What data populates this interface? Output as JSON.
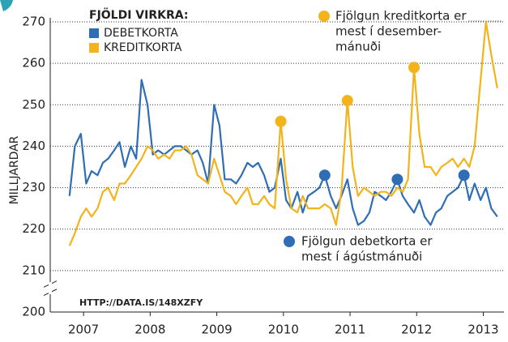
{
  "chart_data": {
    "type": "line",
    "y_axis_label": "MILLJARDAR",
    "legend_title": "FJÖLDI VIRKRA:",
    "source": "HTTP://DATA.IS/148XZFY",
    "annotations": [
      {
        "lines": [
          "Fjölgun kreditkorta er",
          "mest í desember-",
          "mánuði"
        ],
        "color": "#f2b31b"
      },
      {
        "lines": [
          "Fjölgun debetkorta er",
          "mest í ágústmánuði"
        ],
        "color": "#2f6db5"
      }
    ],
    "x": [
      2006.79,
      2006.87,
      2006.96,
      2007.04,
      2007.12,
      2007.21,
      2007.29,
      2007.37,
      2007.46,
      2007.54,
      2007.62,
      2007.71,
      2007.79,
      2007.87,
      2007.96,
      2008.04,
      2008.12,
      2008.21,
      2008.29,
      2008.37,
      2008.46,
      2008.54,
      2008.62,
      2008.71,
      2008.79,
      2008.87,
      2008.96,
      2009.04,
      2009.12,
      2009.21,
      2009.29,
      2009.37,
      2009.46,
      2009.54,
      2009.62,
      2009.71,
      2009.79,
      2009.87,
      2009.96,
      2010.04,
      2010.12,
      2010.21,
      2010.29,
      2010.37,
      2010.46,
      2010.54,
      2010.62,
      2010.71,
      2010.79,
      2010.87,
      2010.96,
      2011.04,
      2011.12,
      2011.21,
      2011.29,
      2011.37,
      2011.46,
      2011.54,
      2011.62,
      2011.71,
      2011.79,
      2011.87,
      2011.96,
      2012.04,
      2012.12,
      2012.21,
      2012.29,
      2012.37,
      2012.46,
      2012.54,
      2012.62,
      2012.71,
      2012.79,
      2012.87,
      2012.96,
      2013.04,
      2013.12,
      2013.21
    ],
    "series": [
      {
        "name": "DEBETKORTA",
        "color": "#2f6db5",
        "highlight_x": [
          2010.62,
          2011.71,
          2012.71
        ],
        "values": [
          228,
          240,
          243,
          231,
          234,
          233,
          236,
          237,
          239,
          241,
          235,
          240,
          237,
          256,
          250,
          238,
          239,
          238,
          239,
          240,
          240,
          239,
          238,
          239,
          236,
          231,
          250,
          245,
          232,
          232,
          231,
          233,
          236,
          235,
          236,
          233,
          229,
          230,
          237,
          227,
          225,
          229,
          224,
          228,
          229,
          230,
          233,
          228,
          225,
          228,
          232,
          225,
          221,
          222,
          224,
          229,
          228,
          227,
          229,
          232,
          228,
          226,
          224,
          227,
          223,
          221,
          224,
          225,
          228,
          229,
          230,
          233,
          227,
          231,
          227,
          230,
          225,
          223
        ]
      },
      {
        "name": "KREDITKORTA",
        "color": "#f2b31b",
        "highlight_x": [
          2009.96,
          2010.96,
          2011.96
        ],
        "values": [
          216,
          219,
          223,
          225,
          223,
          225,
          229,
          230,
          227,
          231,
          231,
          233,
          235,
          237,
          240,
          239,
          237,
          238,
          237,
          239,
          239,
          240,
          238,
          233,
          232,
          231,
          237,
          233,
          229,
          228,
          226,
          228,
          230,
          226,
          226,
          228,
          226,
          225,
          246,
          232,
          225,
          224,
          228,
          225,
          225,
          225,
          226,
          225,
          221,
          229,
          251,
          235,
          228,
          230,
          229,
          228,
          229,
          229,
          228,
          230,
          229,
          232,
          259,
          243,
          235,
          235,
          233,
          235,
          236,
          237,
          235,
          237,
          235,
          240,
          256,
          270,
          262,
          254
        ]
      }
    ],
    "xlim": [
      2006.5,
      2013.31
    ],
    "xticks": [
      2007,
      2008,
      2009,
      2010,
      2011,
      2012,
      2013
    ],
    "ylim": [
      200,
      270
    ],
    "yticks": [
      200,
      210,
      220,
      230,
      240,
      250,
      260,
      270
    ],
    "grid": true
  }
}
